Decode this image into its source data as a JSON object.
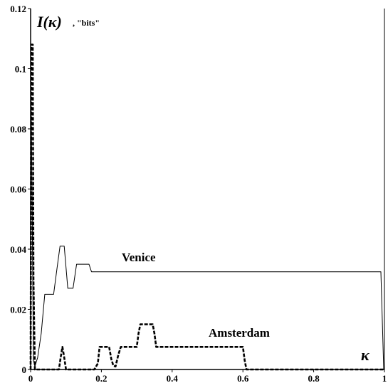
{
  "chart_data": {
    "type": "line",
    "ylabel": "I(κ)",
    "ylabel_unit": ", \"bits\"",
    "xlabel": "κ",
    "xlim": [
      0,
      1
    ],
    "ylim": [
      0,
      0.12
    ],
    "x_ticks": [
      "0",
      "0.2",
      "0.4",
      "0.6",
      "0.8",
      "1"
    ],
    "y_ticks": [
      "0",
      "0.02",
      "0.04",
      "0.06",
      "0.08",
      "0.1",
      "0.12"
    ],
    "grid": false,
    "series": [
      {
        "name": "Venice",
        "style": "thin-solid",
        "x": [
          0.0,
          0.003,
          0.008,
          0.012,
          0.02,
          0.03,
          0.04,
          0.05,
          0.065,
          0.075,
          0.083,
          0.09,
          0.095,
          0.1,
          0.105,
          0.112,
          0.12,
          0.125,
          0.13,
          0.14,
          0.15,
          0.165,
          0.172,
          0.18,
          0.2,
          0.4,
          0.6,
          0.8,
          0.99,
          0.998
        ],
        "values": [
          0.108,
          0.07,
          0.003,
          0.001,
          0.004,
          0.012,
          0.025,
          0.025,
          0.025,
          0.034,
          0.041,
          0.041,
          0.041,
          0.034,
          0.027,
          0.027,
          0.027,
          0.031,
          0.035,
          0.035,
          0.035,
          0.035,
          0.0325,
          0.0325,
          0.0325,
          0.0325,
          0.0325,
          0.0325,
          0.0325,
          0.0
        ]
      },
      {
        "name": "Amsterdam",
        "style": "thick-dashed",
        "x": [
          0.0,
          0.002,
          0.004,
          0.006,
          0.008,
          0.012,
          0.015,
          0.08,
          0.085,
          0.09,
          0.095,
          0.1,
          0.18,
          0.19,
          0.195,
          0.2,
          0.215,
          0.222,
          0.228,
          0.234,
          0.24,
          0.248,
          0.255,
          0.3,
          0.305,
          0.31,
          0.345,
          0.35,
          0.355,
          0.5,
          0.6,
          0.605,
          0.61,
          0.8,
          1.0
        ],
        "values": [
          0.0,
          0.108,
          0.108,
          0.108,
          0.03,
          0.0,
          0.0,
          0.0,
          0.004,
          0.0075,
          0.004,
          0.0,
          0.0,
          0.002,
          0.0075,
          0.0075,
          0.0075,
          0.0075,
          0.0035,
          0.0012,
          0.001,
          0.005,
          0.0075,
          0.0075,
          0.012,
          0.015,
          0.015,
          0.012,
          0.0075,
          0.0075,
          0.0075,
          0.003,
          0.0,
          0.0,
          0.0
        ]
      }
    ]
  }
}
